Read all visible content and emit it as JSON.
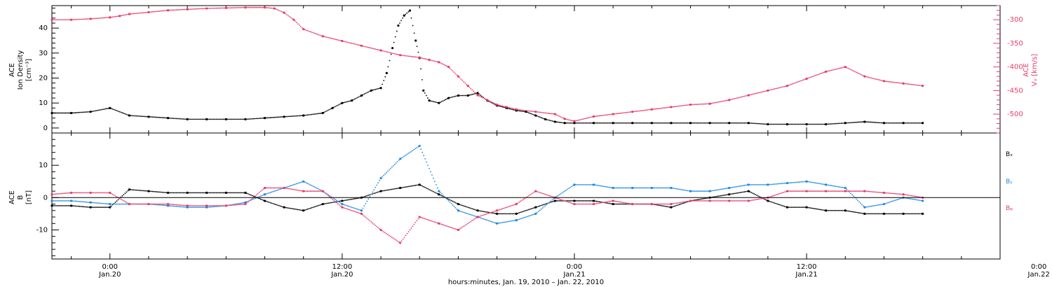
{
  "chart_data": [
    {
      "type": "scatter",
      "panel": "top",
      "ylabel": [
        "ACE",
        "Ion Density",
        "[cm⁻³]"
      ],
      "ylim": [
        -2,
        49
      ],
      "yticks": [
        0,
        10,
        20,
        30,
        40
      ],
      "right_axis": {
        "label": [
          "ACE",
          "Vₓ [km/s]"
        ],
        "ylim": [
          -540,
          -270
        ],
        "ticks": [
          -300,
          -350,
          -400,
          -450,
          -500
        ],
        "color": "#e83c6a"
      },
      "series": [
        {
          "color": "#000000",
          "axis": "left",
          "x": [
            -3,
            -2,
            -1,
            0,
            1,
            2,
            3,
            4,
            5,
            6,
            7,
            8,
            9,
            10,
            11,
            11.5,
            12,
            12.5,
            13,
            13.5,
            14,
            14.3,
            14.6,
            14.9,
            15.2,
            15.5,
            15.8,
            16.0,
            16.2,
            16.5,
            17,
            17.5,
            18,
            18.5,
            19,
            19.5,
            20,
            20.5,
            21,
            21.5,
            22,
            22.5,
            23,
            23.5,
            24,
            25,
            26,
            27,
            28,
            29,
            30,
            31,
            32,
            33,
            34,
            35,
            36,
            37,
            38,
            39,
            40,
            41,
            42
          ],
          "y": [
            6,
            6,
            6.5,
            8,
            5,
            4.5,
            4,
            3.5,
            3.5,
            3.5,
            3.5,
            4,
            4.5,
            5,
            6,
            8,
            10,
            11,
            13,
            15,
            16,
            22,
            32,
            41,
            45,
            47,
            35,
            28,
            15,
            11,
            10,
            12,
            13,
            13,
            14,
            11,
            9,
            8,
            7,
            6.5,
            5,
            3.5,
            2.5,
            2,
            2,
            2,
            2,
            2,
            2,
            2,
            2,
            2,
            2,
            2,
            1.5,
            1.5,
            1.5,
            1.5,
            2,
            2.5,
            2,
            2,
            2
          ]
        },
        {
          "color": "#e83c6a",
          "axis": "right",
          "x": [
            -3,
            -2,
            -1,
            0,
            0.5,
            1,
            2,
            3,
            4,
            5,
            6,
            7,
            8,
            8.5,
            9,
            9.5,
            10,
            11,
            12,
            13,
            14,
            15,
            16,
            16.5,
            17,
            17.5,
            18,
            18.5,
            19,
            19.5,
            20,
            20.5,
            21,
            22,
            23,
            23.5,
            24,
            25,
            26,
            27,
            28,
            29,
            30,
            31,
            32,
            33,
            34,
            35,
            36,
            37,
            38,
            39,
            40,
            41,
            42
          ],
          "y": [
            -300,
            -300,
            -298,
            -295,
            -292,
            -288,
            -284,
            -280,
            -278,
            -276,
            -275,
            -274,
            -274,
            -276,
            -285,
            -300,
            -320,
            -335,
            -345,
            -355,
            -365,
            -375,
            -380,
            -385,
            -390,
            -400,
            -420,
            -440,
            -460,
            -470,
            -480,
            -485,
            -490,
            -495,
            -500,
            -510,
            -515,
            -505,
            -500,
            -495,
            -490,
            -485,
            -480,
            -478,
            -470,
            -460,
            -450,
            -440,
            -425,
            -410,
            -400,
            -420,
            -430,
            -435,
            -440
          ]
        }
      ],
      "xlim": [
        -3,
        46
      ]
    },
    {
      "type": "scatter",
      "panel": "bottom",
      "ylabel": [
        "ACE",
        "B",
        "[nT]"
      ],
      "ylim": [
        -19,
        20
      ],
      "yticks": [
        -10,
        0,
        10
      ],
      "legend": [
        "Bₓ",
        "Bᵧ",
        "Bᵩ"
      ],
      "legend_placement": "right",
      "series": [
        {
          "name": "Bx",
          "color": "#000000",
          "x": [
            -3,
            -2,
            -1,
            0,
            1,
            2,
            3,
            4,
            5,
            6,
            7,
            8,
            9,
            10,
            11,
            12,
            13,
            14,
            15,
            16,
            17,
            18,
            19,
            20,
            21,
            22,
            23,
            24,
            25,
            26,
            27,
            28,
            29,
            30,
            31,
            32,
            33,
            34,
            35,
            36,
            37,
            38,
            39,
            40,
            41,
            42
          ],
          "y": [
            -2.5,
            -2.5,
            -3,
            -3,
            2.5,
            2,
            1.5,
            1.5,
            1.5,
            1.5,
            1.5,
            -1,
            -3,
            -4,
            -2,
            -1,
            0,
            2,
            3,
            4,
            1,
            -2,
            -4,
            -5,
            -5,
            -3,
            -1,
            -1,
            -1,
            -2,
            -2,
            -2,
            -3,
            -1,
            0,
            1,
            2,
            -1,
            -3,
            -3,
            -4,
            -4,
            -5,
            -5,
            -5,
            -5
          ]
        },
        {
          "name": "By",
          "color": "#1e88e5",
          "x": [
            -3,
            -2,
            -1,
            0,
            1,
            2,
            3,
            4,
            5,
            6,
            7,
            8,
            9,
            10,
            11,
            12,
            13,
            14,
            15,
            16,
            17,
            18,
            19,
            20,
            21,
            22,
            23,
            24,
            25,
            26,
            27,
            28,
            29,
            30,
            31,
            32,
            33,
            34,
            35,
            36,
            37,
            38,
            39,
            40,
            41,
            42
          ],
          "y": [
            -1,
            -1,
            -1.5,
            -2,
            -2,
            -2,
            -2.5,
            -3,
            -3,
            -2.5,
            -1.5,
            1,
            3,
            5,
            2,
            -2,
            -4,
            6,
            12,
            16,
            2,
            -4,
            -6,
            -8,
            -7,
            -5,
            0,
            4,
            4,
            3,
            3,
            3,
            3,
            2,
            2,
            3,
            4,
            4,
            4.5,
            5,
            4,
            3,
            -3,
            -2,
            0,
            -1
          ]
        },
        {
          "name": "Bz",
          "color": "#e83c6a",
          "x": [
            -3,
            -2,
            -1,
            0,
            1,
            2,
            3,
            4,
            5,
            6,
            7,
            8,
            9,
            10,
            11,
            12,
            13,
            14,
            15,
            16,
            17,
            18,
            19,
            20,
            21,
            22,
            23,
            24,
            25,
            26,
            27,
            28,
            29,
            30,
            31,
            32,
            33,
            34,
            35,
            36,
            37,
            38,
            39,
            40,
            41,
            42
          ],
          "y": [
            1,
            1.5,
            1.5,
            1.5,
            -2,
            -2,
            -2,
            -2.5,
            -2.5,
            -2.5,
            -2,
            3,
            3,
            2,
            2,
            -3,
            -5,
            -10,
            -14,
            -6,
            -8,
            -10,
            -6,
            -4,
            -2,
            2,
            0,
            -2,
            -2,
            -1,
            -2,
            -2,
            -2,
            -1,
            -1,
            -1,
            -1,
            0,
            2,
            2,
            2,
            2,
            2,
            1.5,
            1,
            0
          ]
        }
      ],
      "xlim": [
        -3,
        46
      ]
    }
  ],
  "xaxis": {
    "ticks": [
      {
        "time": "0:00",
        "date": "Jan.20",
        "hours": 0
      },
      {
        "time": "12:00",
        "date": "Jan.20",
        "hours": 12
      },
      {
        "time": "0:00",
        "date": "Jan.21",
        "hours": 24
      },
      {
        "time": "12:00",
        "date": "Jan.21",
        "hours": 36
      },
      {
        "time": "0:00",
        "date": "Jan.22",
        "hours": 48
      }
    ],
    "label": "hours:minutes, Jan. 19, 2010 – Jan. 22, 2010"
  },
  "colors": {
    "black": "#000000",
    "pink": "#e83c6a",
    "blue": "#1e88e5"
  }
}
